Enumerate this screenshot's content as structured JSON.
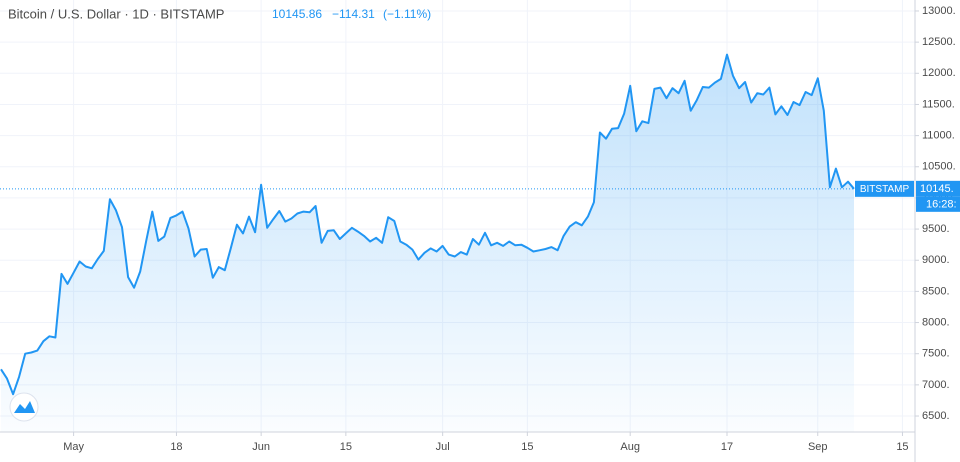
{
  "header": {
    "symbol": "Bitcoin / U.S. Dollar · 1D · BITSTAMP",
    "price": "10145.86",
    "change": "−114.31",
    "change_pct": "(−1.11%)"
  },
  "price_tag": "10145.",
  "countdown": "16:28:",
  "chart_data": {
    "type": "area",
    "color": "#2196f3",
    "grid": true,
    "categories": [
      null,
      null,
      null,
      null,
      null,
      null,
      null,
      null,
      null,
      null,
      null,
      null,
      "May",
      null,
      null,
      null,
      null,
      null,
      null,
      null,
      null,
      null,
      null,
      null,
      null,
      null,
      null,
      null,
      null,
      "18",
      null,
      null,
      null,
      null,
      null,
      null,
      null,
      null,
      null,
      null,
      null,
      null,
      null,
      "Jun",
      null,
      null,
      null,
      null,
      null,
      null,
      null,
      null,
      null,
      null,
      null,
      null,
      null,
      "15",
      null,
      null,
      null,
      null,
      null,
      null,
      null,
      null,
      null,
      null,
      null,
      null,
      null,
      null,
      null,
      "Jul",
      null,
      null,
      null,
      null,
      null,
      null,
      null,
      null,
      null,
      null,
      null,
      null,
      null,
      "15",
      null,
      null,
      null,
      null,
      null,
      null,
      null,
      null,
      null,
      null,
      null,
      null,
      null,
      null,
      null,
      null,
      "Aug",
      null,
      null,
      null,
      null,
      null,
      null,
      null,
      null,
      null,
      null,
      null,
      null,
      null,
      null,
      null,
      "17",
      null,
      null,
      null,
      null,
      null,
      null,
      null,
      null,
      null,
      null,
      null,
      null,
      null,
      null,
      "Sep",
      null,
      null,
      null,
      null,
      null,
      null,
      null,
      null,
      null,
      null,
      null,
      null,
      null,
      "15",
      null
    ],
    "series": [
      {
        "name": "BITSTAMP",
        "color": "#2196f3",
        "values": [
          7250,
          7100,
          6850,
          7130,
          7500,
          7520,
          7550,
          7700,
          7780,
          7760,
          8780,
          8620,
          8800,
          8980,
          8900,
          8870,
          9020,
          9150,
          9980,
          9800,
          9530,
          8730,
          8560,
          8820,
          9310,
          9780,
          9310,
          9380,
          9680,
          9720,
          9780,
          9510,
          9060,
          9170,
          9180,
          8720,
          8890,
          8840,
          9200,
          9570,
          9430,
          9700,
          9450,
          10210,
          9520,
          9660,
          9790,
          9620,
          9670,
          9750,
          9780,
          9770,
          9870,
          9280,
          9470,
          9480,
          9340,
          9430,
          9520,
          9460,
          9390,
          9300,
          9360,
          9280,
          9690,
          9630,
          9300,
          9250,
          9170,
          9010,
          9120,
          9190,
          9140,
          9230,
          9090,
          9060,
          9130,
          9090,
          9340,
          9250,
          9440,
          9240,
          9280,
          9230,
          9300,
          9240,
          9250,
          9200,
          9140,
          9160,
          9180,
          9210,
          9160,
          9390,
          9540,
          9610,
          9560,
          9700,
          9930,
          11050,
          10950,
          11110,
          11120,
          11350,
          11800,
          11070,
          11230,
          11200,
          11750,
          11770,
          11600,
          11760,
          11680,
          11880,
          11400,
          11570,
          11780,
          11770,
          11850,
          11910,
          12300,
          11960,
          11760,
          11860,
          11530,
          11680,
          11660,
          11770,
          11340,
          11470,
          11330,
          11540,
          11490,
          11700,
          11650,
          11920,
          11400,
          10170,
          10470,
          10170,
          10260,
          10145.86,
          null,
          null,
          null,
          null,
          null,
          null,
          null,
          null,
          null
        ]
      }
    ],
    "ylim": [
      6250,
      13250
    ],
    "yticks": [
      {
        "value": 6500,
        "label": "6500."
      },
      {
        "value": 7000,
        "label": "7000."
      },
      {
        "value": 7500,
        "label": "7500."
      },
      {
        "value": 8000,
        "label": "8000."
      },
      {
        "value": 8500,
        "label": "8500."
      },
      {
        "value": 9000,
        "label": "9000."
      },
      {
        "value": 9500,
        "label": "9500."
      },
      {
        "value": 10000,
        "label": "10000."
      },
      {
        "value": 10500,
        "label": "10500."
      },
      {
        "value": 11000,
        "label": "11000."
      },
      {
        "value": 11500,
        "label": "11500."
      },
      {
        "value": 12000,
        "label": "12000."
      },
      {
        "value": 12500,
        "label": "12500."
      },
      {
        "value": 13000,
        "label": "13000."
      }
    ]
  }
}
